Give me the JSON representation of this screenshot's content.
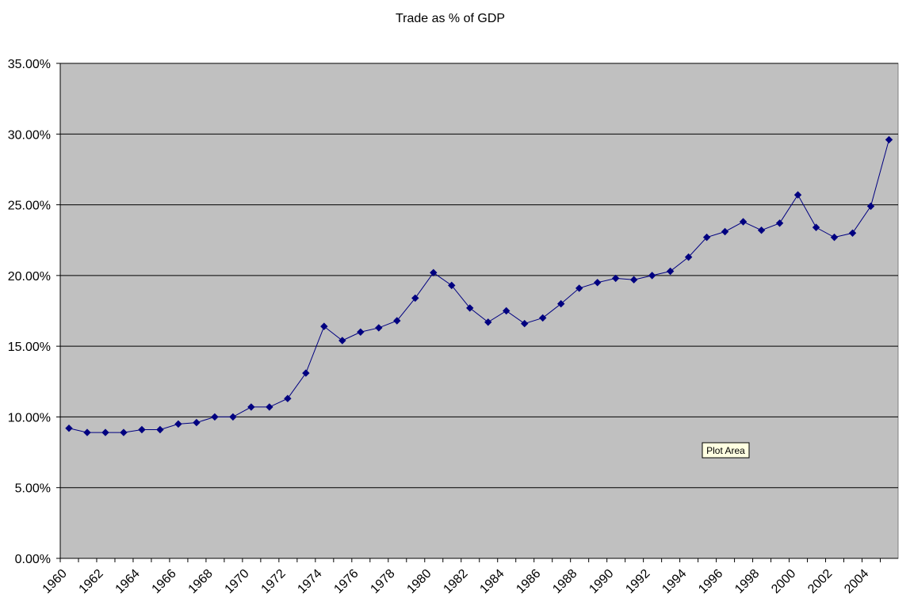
{
  "chart_data": {
    "type": "line",
    "title": "Trade as % of GDP",
    "xlabel": "",
    "ylabel": "",
    "ylim": [
      0,
      0.35
    ],
    "yticks": [
      0,
      0.05,
      0.1,
      0.15,
      0.2,
      0.25,
      0.3,
      0.35
    ],
    "ytick_labels": [
      "0.00%",
      "5.00%",
      "10.00%",
      "15.00%",
      "20.00%",
      "25.00%",
      "30.00%",
      "35.00%"
    ],
    "xticks": [
      1960,
      1962,
      1964,
      1966,
      1968,
      1970,
      1972,
      1974,
      1976,
      1978,
      1980,
      1982,
      1984,
      1986,
      1988,
      1990,
      1992,
      1994,
      1996,
      1998,
      2000,
      2002,
      2004
    ],
    "grid": "horizontal",
    "legend": "none",
    "plot_area_color": "#C0C0C0",
    "series_color": "#000080",
    "series": [
      {
        "x": [
          1960,
          1961,
          1962,
          1963,
          1964,
          1965,
          1966,
          1967,
          1968,
          1969,
          1970,
          1971,
          1972,
          1973,
          1974,
          1975,
          1976,
          1977,
          1978,
          1979,
          1980,
          1981,
          1982,
          1983,
          1984,
          1985,
          1986,
          1987,
          1988,
          1989,
          1990,
          1991,
          1992,
          1993,
          1994,
          1995,
          1996,
          1997,
          1998,
          1999,
          2000,
          2001,
          2002,
          2003,
          2004,
          2005
        ],
        "values": [
          0.092,
          0.089,
          0.089,
          0.089,
          0.091,
          0.091,
          0.095,
          0.096,
          0.1,
          0.1,
          0.107,
          0.107,
          0.113,
          0.131,
          0.164,
          0.154,
          0.16,
          0.163,
          0.168,
          0.184,
          0.202,
          0.193,
          0.177,
          0.167,
          0.175,
          0.166,
          0.17,
          0.18,
          0.191,
          0.195,
          0.198,
          0.197,
          0.2,
          0.203,
          0.213,
          0.227,
          0.231,
          0.238,
          0.232,
          0.237,
          0.257,
          0.234,
          0.227,
          0.23,
          0.249,
          0.296
        ]
      }
    ]
  },
  "tooltip": {
    "text": "Plot Area"
  }
}
